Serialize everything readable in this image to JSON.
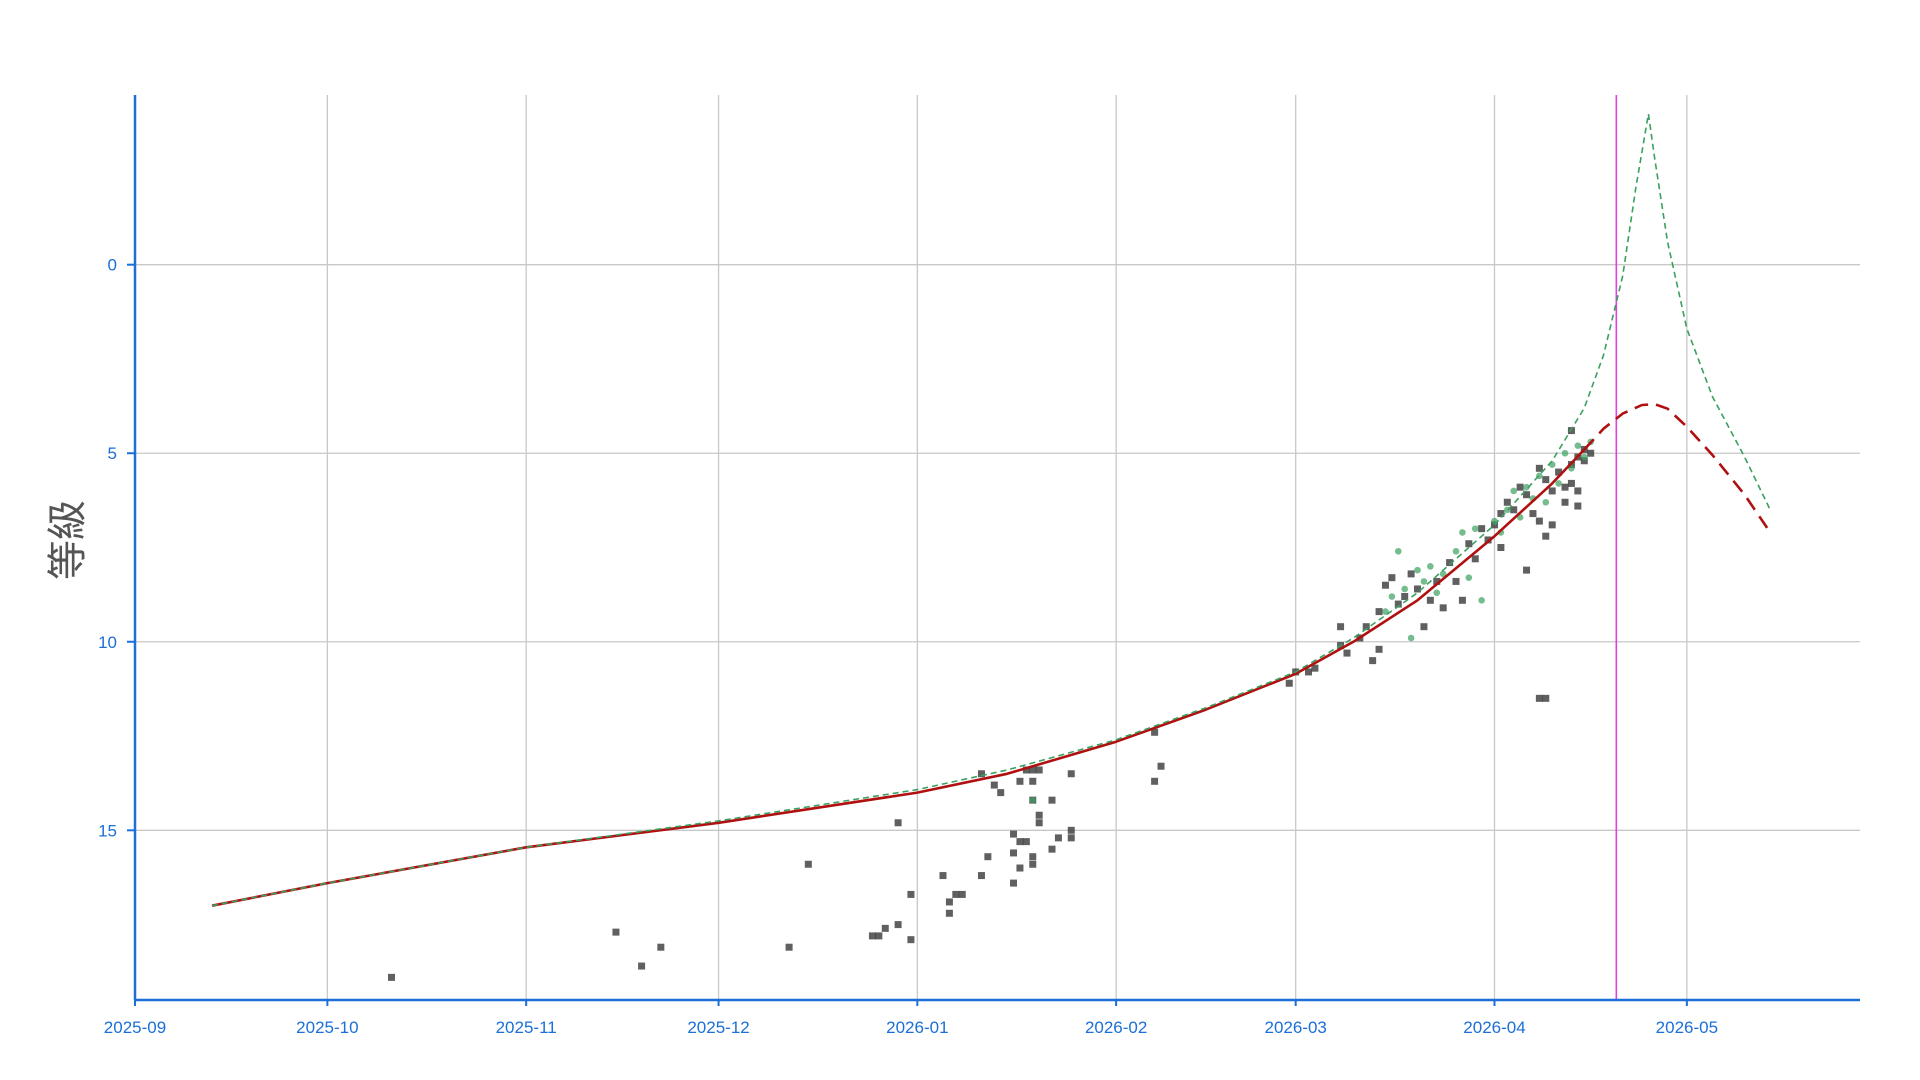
{
  "chart_data": {
    "type": "scatter",
    "title": "",
    "xlabel": "",
    "ylabel": "等級",
    "y_inverted": true,
    "xlim": [
      "2025-09-01",
      "2026-05-28"
    ],
    "ylim": [
      19.5,
      -4.5
    ],
    "grid": true,
    "legend": "none",
    "x_ticks": [
      "2025-09",
      "2025-10",
      "2025-11",
      "2025-12",
      "2026-01",
      "2026-02",
      "2026-03",
      "2026-04",
      "2026-05"
    ],
    "y_ticks": [
      0,
      5,
      10,
      15
    ],
    "vertical_marker": {
      "x": "2026-04-20",
      "color": "#e040e0"
    },
    "colors": {
      "axis": "#1a6fd8",
      "fit_line": "#b01010",
      "green_curve": "#3aa060",
      "observations_dark": "#333333",
      "observations_green": "#3aa060"
    },
    "series": [
      {
        "kind": "curve",
        "style": "solid",
        "color": "#b01010",
        "points": [
          [
            "2025-09-13",
            17.0
          ],
          [
            "2025-10-01",
            16.4
          ],
          [
            "2025-11-01",
            15.45
          ],
          [
            "2025-12-01",
            14.8
          ],
          [
            "2026-01-01",
            14.0
          ],
          [
            "2026-01-15",
            13.5
          ],
          [
            "2026-02-01",
            12.65
          ],
          [
            "2026-02-15",
            11.8
          ],
          [
            "2026-03-01",
            10.85
          ],
          [
            "2026-03-10",
            10.0
          ],
          [
            "2026-03-20",
            8.9
          ],
          [
            "2026-04-01",
            7.2
          ],
          [
            "2026-04-10",
            5.8
          ],
          [
            "2026-04-15",
            4.9
          ]
        ]
      },
      {
        "kind": "curve",
        "style": "dashed",
        "color": "#b01010",
        "points": [
          [
            "2026-04-15",
            4.9
          ],
          [
            "2026-04-18",
            4.35
          ],
          [
            "2026-04-21",
            3.95
          ],
          [
            "2026-04-24",
            3.72
          ],
          [
            "2026-04-26",
            3.7
          ],
          [
            "2026-04-28",
            3.82
          ],
          [
            "2026-05-01",
            4.3
          ],
          [
            "2026-05-05",
            5.05
          ],
          [
            "2026-05-10",
            6.1
          ],
          [
            "2026-05-14",
            7.1
          ]
        ]
      },
      {
        "kind": "curve",
        "style": "dashed",
        "color": "#3aa060",
        "points": [
          [
            "2025-09-13",
            17.0
          ],
          [
            "2025-10-01",
            16.4
          ],
          [
            "2025-11-01",
            15.45
          ],
          [
            "2025-12-01",
            14.75
          ],
          [
            "2026-01-01",
            13.92
          ],
          [
            "2026-01-15",
            13.4
          ],
          [
            "2026-02-01",
            12.6
          ],
          [
            "2026-02-15",
            11.75
          ],
          [
            "2026-03-01",
            10.8
          ],
          [
            "2026-03-10",
            9.9
          ],
          [
            "2026-03-20",
            8.7
          ],
          [
            "2026-04-01",
            6.9
          ],
          [
            "2026-04-10",
            5.2
          ],
          [
            "2026-04-15",
            3.8
          ],
          [
            "2026-04-18",
            2.4
          ],
          [
            "2026-04-21",
            0.3
          ],
          [
            "2026-04-23",
            -2.0
          ],
          [
            "2026-04-25",
            -4.0
          ],
          [
            "2026-04-26",
            -2.8
          ],
          [
            "2026-04-28",
            -0.6
          ],
          [
            "2026-05-01",
            1.7
          ],
          [
            "2026-05-05",
            3.5
          ],
          [
            "2026-05-10",
            5.1
          ],
          [
            "2026-05-14",
            6.5
          ]
        ]
      },
      {
        "kind": "points",
        "marker": "square",
        "color": "#333333",
        "points": [
          [
            "2025-10-11",
            18.9
          ],
          [
            "2025-11-15",
            17.7
          ],
          [
            "2025-11-19",
            18.6
          ],
          [
            "2025-11-22",
            18.1
          ],
          [
            "2025-12-12",
            18.1
          ],
          [
            "2025-12-15",
            15.9
          ],
          [
            "2025-12-25",
            17.8
          ],
          [
            "2025-12-26",
            17.8
          ],
          [
            "2025-12-27",
            17.6
          ],
          [
            "2025-12-29",
            17.5
          ],
          [
            "2025-12-29",
            14.8
          ],
          [
            "2025-12-31",
            16.7
          ],
          [
            "2025-12-31",
            17.9
          ],
          [
            "2026-01-05",
            16.2
          ],
          [
            "2026-01-06",
            16.9
          ],
          [
            "2026-01-06",
            17.2
          ],
          [
            "2026-01-07",
            16.7
          ],
          [
            "2026-01-08",
            16.7
          ],
          [
            "2026-01-11",
            16.2
          ],
          [
            "2026-01-12",
            15.7
          ],
          [
            "2026-01-11",
            13.5
          ],
          [
            "2026-01-13",
            13.8
          ],
          [
            "2026-01-14",
            14.0
          ],
          [
            "2026-01-16",
            15.1
          ],
          [
            "2026-01-16",
            15.6
          ],
          [
            "2026-01-16",
            16.4
          ],
          [
            "2026-01-17",
            13.7
          ],
          [
            "2026-01-17",
            16.0
          ],
          [
            "2026-01-17",
            15.3
          ],
          [
            "2026-01-18",
            13.4
          ],
          [
            "2026-01-18",
            15.3
          ],
          [
            "2026-01-19",
            14.2
          ],
          [
            "2026-01-19",
            15.7
          ],
          [
            "2026-01-19",
            15.9
          ],
          [
            "2026-01-19",
            13.7
          ],
          [
            "2026-01-19",
            13.4
          ],
          [
            "2026-01-20",
            14.6
          ],
          [
            "2026-01-20",
            14.8
          ],
          [
            "2026-01-20",
            13.4
          ],
          [
            "2026-01-22",
            15.5
          ],
          [
            "2026-01-22",
            14.2
          ],
          [
            "2026-01-23",
            15.2
          ],
          [
            "2026-01-25",
            13.5
          ],
          [
            "2026-01-25",
            15.0
          ],
          [
            "2026-01-25",
            15.2
          ],
          [
            "2026-02-07",
            13.7
          ],
          [
            "2026-02-07",
            12.4
          ],
          [
            "2026-02-08",
            13.3
          ],
          [
            "2026-02-28",
            11.1
          ],
          [
            "2026-03-01",
            10.8
          ],
          [
            "2026-03-03",
            10.8
          ],
          [
            "2026-03-04",
            10.7
          ],
          [
            "2026-03-08",
            10.1
          ],
          [
            "2026-03-08",
            9.6
          ],
          [
            "2026-03-09",
            10.3
          ],
          [
            "2026-03-11",
            9.9
          ],
          [
            "2026-03-12",
            9.6
          ],
          [
            "2026-03-13",
            10.5
          ],
          [
            "2026-03-14",
            10.2
          ],
          [
            "2026-03-14",
            9.2
          ],
          [
            "2026-03-15",
            8.5
          ],
          [
            "2026-03-16",
            8.3
          ],
          [
            "2026-03-17",
            9.0
          ],
          [
            "2026-03-18",
            8.8
          ],
          [
            "2026-03-19",
            8.2
          ],
          [
            "2026-03-20",
            8.6
          ],
          [
            "2026-03-21",
            9.6
          ],
          [
            "2026-03-22",
            8.9
          ],
          [
            "2026-03-23",
            8.4
          ],
          [
            "2026-03-24",
            9.1
          ],
          [
            "2026-03-25",
            7.9
          ],
          [
            "2026-03-26",
            8.4
          ],
          [
            "2026-03-27",
            8.9
          ],
          [
            "2026-03-28",
            7.4
          ],
          [
            "2026-03-29",
            7.8
          ],
          [
            "2026-03-30",
            7.0
          ],
          [
            "2026-03-31",
            7.3
          ],
          [
            "2026-04-01",
            6.9
          ],
          [
            "2026-04-02",
            7.5
          ],
          [
            "2026-04-02",
            6.6
          ],
          [
            "2026-04-03",
            6.3
          ],
          [
            "2026-04-04",
            6.5
          ],
          [
            "2026-04-05",
            5.9
          ],
          [
            "2026-04-06",
            6.1
          ],
          [
            "2026-04-06",
            8.1
          ],
          [
            "2026-04-07",
            6.6
          ],
          [
            "2026-04-08",
            5.4
          ],
          [
            "2026-04-08",
            6.8
          ],
          [
            "2026-04-08",
            11.5
          ],
          [
            "2026-04-09",
            11.5
          ],
          [
            "2026-04-09",
            7.2
          ],
          [
            "2026-04-09",
            5.7
          ],
          [
            "2026-04-10",
            6.0
          ],
          [
            "2026-04-10",
            6.9
          ],
          [
            "2026-04-11",
            5.5
          ],
          [
            "2026-04-12",
            6.3
          ],
          [
            "2026-04-12",
            5.9
          ],
          [
            "2026-04-13",
            5.3
          ],
          [
            "2026-04-13",
            5.8
          ],
          [
            "2026-04-13",
            4.4
          ],
          [
            "2026-04-14",
            6.0
          ],
          [
            "2026-04-14",
            5.1
          ],
          [
            "2026-04-14",
            6.4
          ],
          [
            "2026-04-15",
            5.2
          ],
          [
            "2026-04-15",
            4.9
          ],
          [
            "2026-04-16",
            5.0
          ]
        ]
      },
      {
        "kind": "points",
        "marker": "circle",
        "color": "#3aa060",
        "points": [
          [
            "2026-01-19",
            14.2
          ],
          [
            "2026-03-15",
            9.2
          ],
          [
            "2026-03-16",
            8.8
          ],
          [
            "2026-03-17",
            7.6
          ],
          [
            "2026-03-18",
            8.6
          ],
          [
            "2026-03-19",
            9.9
          ],
          [
            "2026-03-20",
            8.1
          ],
          [
            "2026-03-21",
            8.4
          ],
          [
            "2026-03-22",
            8.0
          ],
          [
            "2026-03-23",
            8.7
          ],
          [
            "2026-03-24",
            8.2
          ],
          [
            "2026-03-26",
            7.6
          ],
          [
            "2026-03-27",
            7.1
          ],
          [
            "2026-03-28",
            8.3
          ],
          [
            "2026-03-29",
            7.0
          ],
          [
            "2026-03-30",
            8.9
          ],
          [
            "2026-04-01",
            6.8
          ],
          [
            "2026-04-02",
            7.1
          ],
          [
            "2026-04-03",
            6.5
          ],
          [
            "2026-04-04",
            6.0
          ],
          [
            "2026-04-05",
            6.7
          ],
          [
            "2026-04-06",
            5.9
          ],
          [
            "2026-04-07",
            6.2
          ],
          [
            "2026-04-08",
            5.6
          ],
          [
            "2026-04-09",
            6.3
          ],
          [
            "2026-04-10",
            5.3
          ],
          [
            "2026-04-11",
            5.8
          ],
          [
            "2026-04-12",
            5.0
          ],
          [
            "2026-04-13",
            5.4
          ],
          [
            "2026-04-14",
            4.8
          ],
          [
            "2026-04-15",
            5.1
          ],
          [
            "2026-04-16",
            4.7
          ]
        ]
      }
    ]
  }
}
